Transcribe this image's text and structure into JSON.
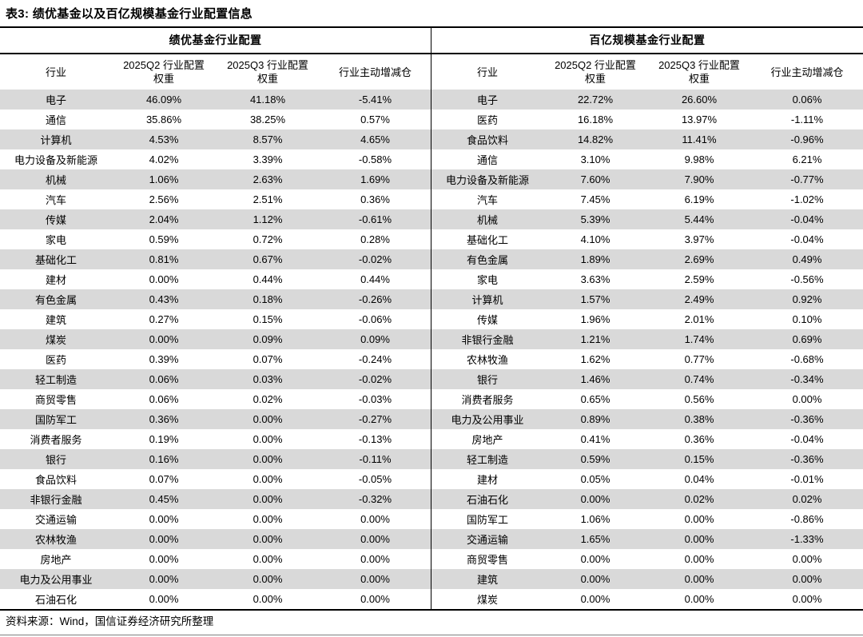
{
  "title": "表3: 绩优基金以及百亿规模基金行业配置信息",
  "source_note": "资料来源：Wind，国信证券经济研究所整理",
  "colors": {
    "stripe": "#d9d9d9",
    "border": "#000000",
    "bottom_rule": "#7f7f7f"
  },
  "columns": {
    "industry": "行业",
    "q2_weight": [
      "2025Q2 行业配置",
      "权重"
    ],
    "q3_weight": [
      "2025Q3 行业配置",
      "权重"
    ],
    "active_change": "行业主动增减仓"
  },
  "left_table": {
    "title": "绩优基金行业配置",
    "rows": [
      {
        "industry": "电子",
        "q2": "46.09%",
        "q3": "41.18%",
        "change": "-5.41%"
      },
      {
        "industry": "通信",
        "q2": "35.86%",
        "q3": "38.25%",
        "change": "0.57%"
      },
      {
        "industry": "计算机",
        "q2": "4.53%",
        "q3": "8.57%",
        "change": "4.65%"
      },
      {
        "industry": "电力设备及新能源",
        "q2": "4.02%",
        "q3": "3.39%",
        "change": "-0.58%"
      },
      {
        "industry": "机械",
        "q2": "1.06%",
        "q3": "2.63%",
        "change": "1.69%"
      },
      {
        "industry": "汽车",
        "q2": "2.56%",
        "q3": "2.51%",
        "change": "0.36%"
      },
      {
        "industry": "传媒",
        "q2": "2.04%",
        "q3": "1.12%",
        "change": "-0.61%"
      },
      {
        "industry": "家电",
        "q2": "0.59%",
        "q3": "0.72%",
        "change": "0.28%"
      },
      {
        "industry": "基础化工",
        "q2": "0.81%",
        "q3": "0.67%",
        "change": "-0.02%"
      },
      {
        "industry": "建材",
        "q2": "0.00%",
        "q3": "0.44%",
        "change": "0.44%"
      },
      {
        "industry": "有色金属",
        "q2": "0.43%",
        "q3": "0.18%",
        "change": "-0.26%"
      },
      {
        "industry": "建筑",
        "q2": "0.27%",
        "q3": "0.15%",
        "change": "-0.06%"
      },
      {
        "industry": "煤炭",
        "q2": "0.00%",
        "q3": "0.09%",
        "change": "0.09%"
      },
      {
        "industry": "医药",
        "q2": "0.39%",
        "q3": "0.07%",
        "change": "-0.24%"
      },
      {
        "industry": "轻工制造",
        "q2": "0.06%",
        "q3": "0.03%",
        "change": "-0.02%"
      },
      {
        "industry": "商贸零售",
        "q2": "0.06%",
        "q3": "0.02%",
        "change": "-0.03%"
      },
      {
        "industry": "国防军工",
        "q2": "0.36%",
        "q3": "0.00%",
        "change": "-0.27%"
      },
      {
        "industry": "消费者服务",
        "q2": "0.19%",
        "q3": "0.00%",
        "change": "-0.13%"
      },
      {
        "industry": "银行",
        "q2": "0.16%",
        "q3": "0.00%",
        "change": "-0.11%"
      },
      {
        "industry": "食品饮料",
        "q2": "0.07%",
        "q3": "0.00%",
        "change": "-0.05%"
      },
      {
        "industry": "非银行金融",
        "q2": "0.45%",
        "q3": "0.00%",
        "change": "-0.32%"
      },
      {
        "industry": "交通运输",
        "q2": "0.00%",
        "q3": "0.00%",
        "change": "0.00%"
      },
      {
        "industry": "农林牧渔",
        "q2": "0.00%",
        "q3": "0.00%",
        "change": "0.00%"
      },
      {
        "industry": "房地产",
        "q2": "0.00%",
        "q3": "0.00%",
        "change": "0.00%"
      },
      {
        "industry": "电力及公用事业",
        "q2": "0.00%",
        "q3": "0.00%",
        "change": "0.00%"
      },
      {
        "industry": "石油石化",
        "q2": "0.00%",
        "q3": "0.00%",
        "change": "0.00%"
      }
    ]
  },
  "right_table": {
    "title": "百亿规模基金行业配置",
    "rows": [
      {
        "industry": "电子",
        "q2": "22.72%",
        "q3": "26.60%",
        "change": "0.06%"
      },
      {
        "industry": "医药",
        "q2": "16.18%",
        "q3": "13.97%",
        "change": "-1.11%"
      },
      {
        "industry": "食品饮料",
        "q2": "14.82%",
        "q3": "11.41%",
        "change": "-0.96%"
      },
      {
        "industry": "通信",
        "q2": "3.10%",
        "q3": "9.98%",
        "change": "6.21%"
      },
      {
        "industry": "电力设备及新能源",
        "q2": "7.60%",
        "q3": "7.90%",
        "change": "-0.77%"
      },
      {
        "industry": "汽车",
        "q2": "7.45%",
        "q3": "6.19%",
        "change": "-1.02%"
      },
      {
        "industry": "机械",
        "q2": "5.39%",
        "q3": "5.44%",
        "change": "-0.04%"
      },
      {
        "industry": "基础化工",
        "q2": "4.10%",
        "q3": "3.97%",
        "change": "-0.04%"
      },
      {
        "industry": "有色金属",
        "q2": "1.89%",
        "q3": "2.69%",
        "change": "0.49%"
      },
      {
        "industry": "家电",
        "q2": "3.63%",
        "q3": "2.59%",
        "change": "-0.56%"
      },
      {
        "industry": "计算机",
        "q2": "1.57%",
        "q3": "2.49%",
        "change": "0.92%"
      },
      {
        "industry": "传媒",
        "q2": "1.96%",
        "q3": "2.01%",
        "change": "0.10%"
      },
      {
        "industry": "非银行金融",
        "q2": "1.21%",
        "q3": "1.74%",
        "change": "0.69%"
      },
      {
        "industry": "农林牧渔",
        "q2": "1.62%",
        "q3": "0.77%",
        "change": "-0.68%"
      },
      {
        "industry": "银行",
        "q2": "1.46%",
        "q3": "0.74%",
        "change": "-0.34%"
      },
      {
        "industry": "消费者服务",
        "q2": "0.65%",
        "q3": "0.56%",
        "change": "0.00%"
      },
      {
        "industry": "电力及公用事业",
        "q2": "0.89%",
        "q3": "0.38%",
        "change": "-0.36%"
      },
      {
        "industry": "房地产",
        "q2": "0.41%",
        "q3": "0.36%",
        "change": "-0.04%"
      },
      {
        "industry": "轻工制造",
        "q2": "0.59%",
        "q3": "0.15%",
        "change": "-0.36%"
      },
      {
        "industry": "建材",
        "q2": "0.05%",
        "q3": "0.04%",
        "change": "-0.01%"
      },
      {
        "industry": "石油石化",
        "q2": "0.00%",
        "q3": "0.02%",
        "change": "0.02%"
      },
      {
        "industry": "国防军工",
        "q2": "1.06%",
        "q3": "0.00%",
        "change": "-0.86%"
      },
      {
        "industry": "交通运输",
        "q2": "1.65%",
        "q3": "0.00%",
        "change": "-1.33%"
      },
      {
        "industry": "商贸零售",
        "q2": "0.00%",
        "q3": "0.00%",
        "change": "0.00%"
      },
      {
        "industry": "建筑",
        "q2": "0.00%",
        "q3": "0.00%",
        "change": "0.00%"
      },
      {
        "industry": "煤炭",
        "q2": "0.00%",
        "q3": "0.00%",
        "change": "0.00%"
      }
    ]
  }
}
